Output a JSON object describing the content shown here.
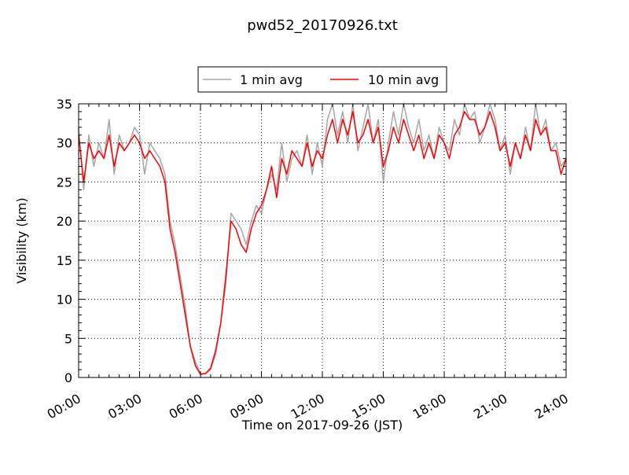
{
  "chart_data": {
    "type": "line",
    "title": "pwd52_20170926.txt",
    "xlabel": "Time on 2017-09-26 (JST)",
    "ylabel": "Visibility (km)",
    "xlim": [
      0,
      24
    ],
    "ylim": [
      0,
      35
    ],
    "x_ticks": [
      "00:00",
      "03:00",
      "06:00",
      "09:00",
      "12:00",
      "15:00",
      "18:00",
      "21:00",
      "24:00"
    ],
    "x_tick_values": [
      0,
      3,
      6,
      9,
      12,
      15,
      18,
      21,
      24
    ],
    "y_ticks": [
      "0",
      "5",
      "10",
      "15",
      "20",
      "25",
      "30",
      "35"
    ],
    "y_tick_values": [
      0,
      5,
      10,
      15,
      20,
      25,
      30,
      35
    ],
    "grid": true,
    "legend_position": "top-center",
    "colors": {
      "one_min": "#a6a6a6",
      "ten_min": "#ff0000"
    },
    "series": [
      {
        "name": "1 min avg",
        "x_hours": [
          0,
          0.25,
          0.5,
          0.75,
          1,
          1.25,
          1.5,
          1.75,
          2,
          2.25,
          2.5,
          2.75,
          3,
          3.25,
          3.5,
          3.75,
          4,
          4.25,
          4.5,
          4.75,
          5,
          5.25,
          5.5,
          5.75,
          6,
          6.25,
          6.5,
          6.75,
          7,
          7.25,
          7.5,
          7.75,
          8,
          8.25,
          8.5,
          8.75,
          9,
          9.25,
          9.5,
          9.75,
          10,
          10.25,
          10.5,
          10.75,
          11,
          11.25,
          11.5,
          11.75,
          12,
          12.25,
          12.5,
          12.75,
          13,
          13.25,
          13.5,
          13.75,
          14,
          14.25,
          14.5,
          14.75,
          15,
          15.25,
          15.5,
          15.75,
          16,
          16.25,
          16.5,
          16.75,
          17,
          17.25,
          17.5,
          17.75,
          18,
          18.25,
          18.5,
          18.75,
          19,
          19.25,
          19.5,
          19.75,
          20,
          20.25,
          20.5,
          20.75,
          21,
          21.25,
          21.5,
          21.75,
          22,
          22.25,
          22.5,
          22.75,
          23,
          23.25,
          23.5,
          23.75,
          24
        ],
        "values": [
          32,
          24,
          31,
          27,
          30,
          28,
          33,
          26,
          31,
          29,
          30,
          32,
          31,
          26,
          30,
          29,
          28,
          26,
          20,
          17,
          13,
          9,
          4,
          2,
          0.5,
          0.5,
          1,
          3,
          7,
          12,
          21,
          20,
          19,
          17,
          20,
          22,
          21,
          24,
          26,
          24,
          30,
          25,
          28,
          29,
          27,
          31,
          26,
          30,
          27,
          33,
          35,
          31,
          34,
          30,
          35,
          29,
          32,
          35,
          30,
          33,
          25,
          30,
          34,
          31,
          35,
          32,
          30,
          33,
          29,
          31,
          28,
          32,
          30,
          29,
          33,
          31,
          35,
          33,
          34,
          30,
          32,
          35,
          33,
          29,
          31,
          26,
          30,
          28,
          32,
          29,
          35,
          31,
          33,
          29,
          30,
          27,
          28
        ]
      },
      {
        "name": "10 min avg",
        "x_hours": [
          0,
          0.25,
          0.5,
          0.75,
          1,
          1.25,
          1.5,
          1.75,
          2,
          2.25,
          2.5,
          2.75,
          3,
          3.25,
          3.5,
          3.75,
          4,
          4.25,
          4.5,
          4.75,
          5,
          5.25,
          5.5,
          5.75,
          6,
          6.25,
          6.5,
          6.75,
          7,
          7.25,
          7.5,
          7.75,
          8,
          8.25,
          8.5,
          8.75,
          9,
          9.25,
          9.5,
          9.75,
          10,
          10.25,
          10.5,
          10.75,
          11,
          11.25,
          11.5,
          11.75,
          12,
          12.25,
          12.5,
          12.75,
          13,
          13.25,
          13.5,
          13.75,
          14,
          14.25,
          14.5,
          14.75,
          15,
          15.25,
          15.5,
          15.75,
          16,
          16.25,
          16.5,
          16.75,
          17,
          17.25,
          17.5,
          17.75,
          18,
          18.25,
          18.5,
          18.75,
          19,
          19.25,
          19.5,
          19.75,
          20,
          20.25,
          20.5,
          20.75,
          21,
          21.25,
          21.5,
          21.75,
          22,
          22.25,
          22.5,
          22.75,
          23,
          23.25,
          23.5,
          23.75,
          24
        ],
        "values": [
          31,
          25,
          30,
          28,
          29,
          28,
          31,
          27,
          30,
          29,
          30,
          31,
          30,
          28,
          29,
          28,
          27,
          25,
          19,
          16,
          12,
          8,
          4,
          1.5,
          0.4,
          0.5,
          1.2,
          3.5,
          7,
          13,
          20,
          19,
          17,
          16,
          19,
          21,
          22,
          24,
          27,
          23,
          28,
          26,
          29,
          28,
          27,
          30,
          27,
          29,
          28,
          31,
          33,
          30,
          33,
          31,
          34,
          30,
          31,
          33,
          30,
          32,
          27,
          29,
          32,
          30,
          33,
          31,
          29,
          31,
          28,
          30,
          28,
          31,
          30,
          28,
          31,
          32,
          34,
          33,
          33,
          31,
          32,
          34,
          32,
          29,
          30,
          27,
          30,
          28,
          31,
          29,
          33,
          31,
          32,
          29,
          29,
          26,
          28
        ]
      }
    ]
  }
}
